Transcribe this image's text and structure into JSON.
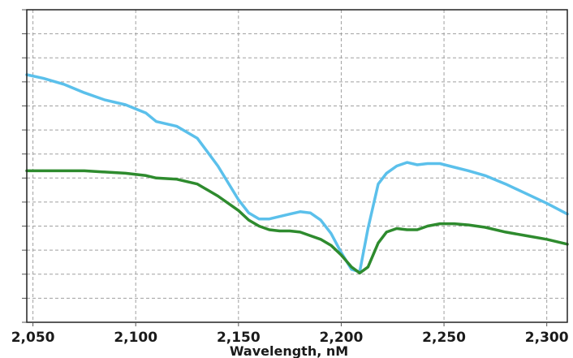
{
  "chart_data": {
    "type": "line",
    "title": "",
    "xlabel": "Wavelength, nM",
    "ylabel": "",
    "xlim": [
      2047,
      2310
    ],
    "ylim": [
      0,
      13
    ],
    "x_ticks": [
      2050,
      2100,
      2150,
      2200,
      2250,
      2300
    ],
    "x_tick_labels": [
      "2,050",
      "2,100",
      "2,150",
      "2,200",
      "2,250",
      "2,300"
    ],
    "y_grid_count": 13,
    "grid": true,
    "series": [
      {
        "color": "#5bc0eb",
        "x": [
          2047,
          2055,
          2065,
          2075,
          2085,
          2095,
          2105,
          2110,
          2120,
          2130,
          2140,
          2150,
          2155,
          2160,
          2165,
          2170,
          2175,
          2180,
          2185,
          2190,
          2195,
          2200,
          2205,
          2209,
          2213,
          2218,
          2222,
          2227,
          2232,
          2237,
          2242,
          2248,
          2255,
          2262,
          2270,
          2280,
          2290,
          2300,
          2310
        ],
        "y": [
          10.3,
          10.15,
          9.9,
          9.55,
          9.25,
          9.05,
          8.7,
          8.35,
          8.15,
          7.65,
          6.5,
          5.1,
          4.55,
          4.3,
          4.3,
          4.4,
          4.5,
          4.6,
          4.55,
          4.25,
          3.7,
          2.9,
          2.2,
          2.1,
          3.9,
          5.75,
          6.2,
          6.5,
          6.65,
          6.55,
          6.6,
          6.6,
          6.45,
          6.3,
          6.1,
          5.75,
          5.35,
          4.95,
          4.5
        ]
      },
      {
        "color": "#2e8b2e",
        "x": [
          2047,
          2055,
          2065,
          2075,
          2085,
          2095,
          2105,
          2110,
          2120,
          2130,
          2140,
          2150,
          2155,
          2160,
          2165,
          2170,
          2175,
          2180,
          2185,
          2190,
          2195,
          2200,
          2205,
          2209,
          2213,
          2218,
          2222,
          2227,
          2232,
          2237,
          2242,
          2248,
          2255,
          2262,
          2270,
          2280,
          2290,
          2300,
          2310
        ],
        "y": [
          6.3,
          6.3,
          6.3,
          6.3,
          6.25,
          6.2,
          6.1,
          6.0,
          5.95,
          5.75,
          5.25,
          4.65,
          4.25,
          4.0,
          3.85,
          3.8,
          3.8,
          3.75,
          3.6,
          3.45,
          3.2,
          2.8,
          2.3,
          2.05,
          2.3,
          3.3,
          3.75,
          3.9,
          3.85,
          3.85,
          4.0,
          4.1,
          4.1,
          4.05,
          3.95,
          3.75,
          3.6,
          3.45,
          3.25
        ]
      }
    ]
  }
}
